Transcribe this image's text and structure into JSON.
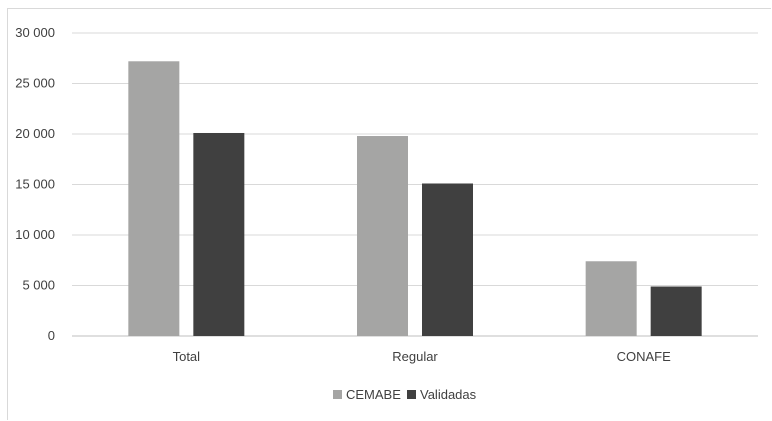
{
  "chart_data": {
    "type": "bar",
    "categories": [
      "Total",
      "Regular",
      "CONAFE"
    ],
    "series": [
      {
        "name": "CEMABE",
        "values": [
          27200,
          19800,
          7400
        ],
        "color": "#a5a5a4"
      },
      {
        "name": "Validadas",
        "values": [
          20100,
          15100,
          4900
        ],
        "color": "#404040"
      }
    ],
    "ylim": [
      0,
      30000
    ],
    "yticks": [
      0,
      5000,
      10000,
      15000,
      20000,
      25000,
      30000
    ],
    "ytick_labels": [
      "0",
      "5 000",
      "10 000",
      "15 000",
      "20 000",
      "25 000",
      "30 000"
    ],
    "grid": true,
    "legend_position": "bottom"
  }
}
